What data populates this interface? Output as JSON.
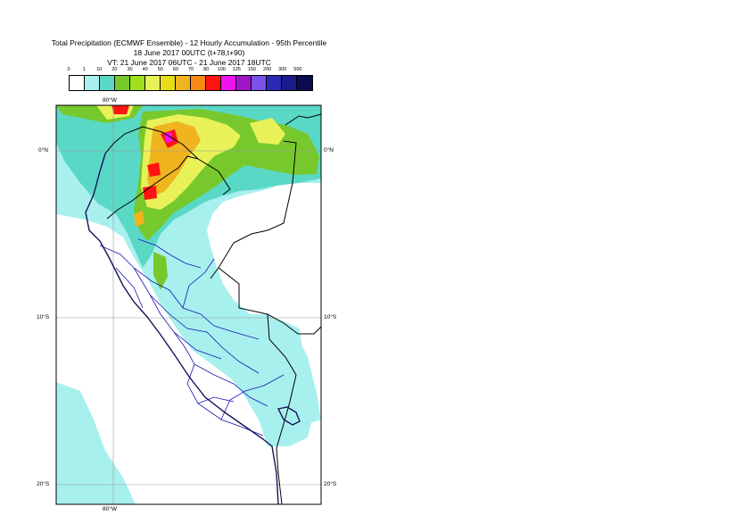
{
  "header": {
    "line1": "Total Precipitation (ECMWF Ensemble) - 12 Hourly Accumulation - 95th Percentile",
    "line2": "18 June 2017 00UTC (t+78,t+90)",
    "line3": "VT: 21 June 2017 06UTC - 21 June 2017 18UTC"
  },
  "legend": {
    "labels": [
      "0",
      "1",
      "10",
      "20",
      "30",
      "40",
      "50",
      "60",
      "70",
      "80",
      "100",
      "125",
      "150",
      "200",
      "300",
      "500"
    ],
    "colors": [
      "#ffffff",
      "#a8f0ee",
      "#5ad8c6",
      "#77c82c",
      "#9ee01e",
      "#e8f258",
      "#e6dc18",
      "#f0b41e",
      "#f58a14",
      "#ff1414",
      "#ee14ee",
      "#a014c8",
      "#7a52e6",
      "#2a2ab4",
      "#1a1a8c",
      "#0c0c50"
    ]
  },
  "map": {
    "lon_labels": {
      "top": "80°W",
      "bottom": "80°W"
    },
    "lat_labels": [
      "0°N",
      "10°S",
      "20°S"
    ],
    "colors": {
      "sea_cyan": "#a8f0ee",
      "teal": "#5ad8c6",
      "green": "#77c82c",
      "yellow": "#e8f258",
      "orange": "#f0b41e",
      "red": "#ff1414",
      "magenta": "#ee14ee",
      "coast": "#14145a",
      "border": "#000000",
      "internal": "#1818b4",
      "grid": "#9a9a9a"
    }
  }
}
